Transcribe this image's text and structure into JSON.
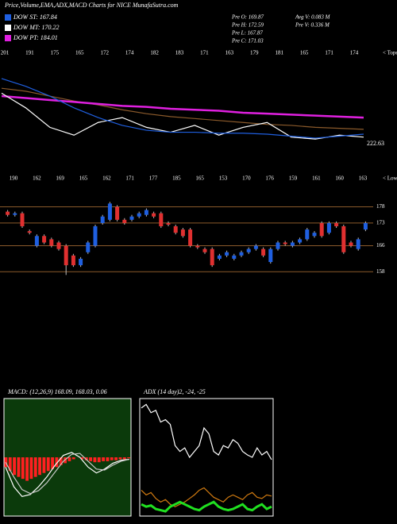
{
  "header": {
    "title": "Price,Volume,EMA,ADX,MACD Charts for NICE MunafaSutra.com",
    "legend": [
      {
        "label": "DOW ST: 167.84",
        "color": "#1f5fe0"
      },
      {
        "label": "DOW MT: 170.22",
        "color": "#ffffff"
      },
      {
        "label": "DOW PT: 184.01",
        "color": "#e020e0"
      }
    ],
    "info": [
      "Pre O: 169.87",
      "Pre H: 172.59",
      "Pre L: 167.87",
      "Pre C: 171.03",
      "Avg V: 0.083 M",
      "Pre V: 0.336 M"
    ]
  },
  "chart_data": [
    {
      "type": "line",
      "label": "222.63",
      "corner_label": "< Tope",
      "x_labels": [
        "201",
        "191",
        "175",
        "165",
        "172",
        "174",
        "182",
        "183",
        "171",
        "163",
        "179",
        "181",
        "165",
        "171",
        "174"
      ],
      "ylim": [
        0,
        100
      ],
      "series": [
        {
          "color": "#8b5a2b",
          "values": [
            60,
            57,
            52,
            47,
            43,
            38,
            34,
            31,
            29,
            27,
            25,
            23,
            22,
            20,
            19,
            18
          ]
        },
        {
          "color": "#e020e0",
          "values": [
            52,
            50,
            48,
            46,
            44,
            42,
            41,
            39,
            38,
            37,
            35,
            34,
            33,
            32,
            31,
            30
          ]
        },
        {
          "color": "#ffffff",
          "values": [
            55,
            40,
            20,
            12,
            25,
            30,
            20,
            15,
            22,
            12,
            20,
            25,
            10,
            8,
            12,
            10
          ]
        },
        {
          "color": "#1f5fe0",
          "values": [
            70,
            62,
            52,
            40,
            30,
            22,
            17,
            15,
            15,
            14,
            14,
            13,
            11,
            9,
            11,
            13
          ]
        }
      ]
    },
    {
      "type": "candlestick",
      "corner_label": "< Lowe",
      "x_labels": [
        "190",
        "162",
        "169",
        "165",
        "162",
        "171",
        "177",
        "185",
        "165",
        "153",
        "170",
        "176",
        "159",
        "161",
        "160",
        "163"
      ],
      "ylim": [
        150,
        183
      ],
      "yticks": [
        178,
        173,
        166,
        158
      ],
      "up_color": "#1f5fe0",
      "down_color": "#e03030",
      "open": [
        176.5,
        175.5,
        176,
        170.5,
        166,
        169,
        168,
        167,
        166,
        163,
        160,
        164,
        166,
        173,
        174,
        178,
        174,
        174,
        175,
        175.5,
        176,
        176,
        173,
        172,
        171,
        171,
        166,
        165,
        165,
        162,
        163,
        162,
        163,
        164,
        165,
        165,
        161,
        165,
        167,
        166,
        167,
        168,
        169,
        173,
        170,
        173,
        172,
        167,
        165,
        171
      ],
      "high": [
        177,
        176.5,
        176.5,
        171,
        169.5,
        169.5,
        168.5,
        167.5,
        166.5,
        163.5,
        162.5,
        167.5,
        172.5,
        175.5,
        179.5,
        178.5,
        174.5,
        175.5,
        176.5,
        177.5,
        176.5,
        176.5,
        173.5,
        172.5,
        171.5,
        171.5,
        166.5,
        165.5,
        165.5,
        163.5,
        164.5,
        163.5,
        164.5,
        165.5,
        166.5,
        165.5,
        165.5,
        167.5,
        167.5,
        167.5,
        168.5,
        171.5,
        170.5,
        173.5,
        173.5,
        173.5,
        172.5,
        167.5,
        168.5,
        173.5
      ],
      "low": [
        175,
        175,
        171.5,
        169.5,
        165.5,
        166.5,
        165.5,
        164.5,
        157,
        159.5,
        159.5,
        163.5,
        165.5,
        172.5,
        173.5,
        173.5,
        172.5,
        173.5,
        174.5,
        175,
        174.5,
        171.5,
        172,
        169.5,
        168.5,
        165.5,
        165,
        163.5,
        159.5,
        161.5,
        162.5,
        161.5,
        162.5,
        163.5,
        164.5,
        162.5,
        160.5,
        164.5,
        166,
        165.5,
        166.5,
        167.5,
        168.5,
        168.5,
        169.5,
        171.5,
        163.5,
        165.5,
        164.5,
        170.5
      ],
      "close": [
        175.5,
        176,
        172,
        170,
        169,
        167,
        166,
        165,
        160,
        160,
        162,
        167,
        172,
        175,
        179,
        174,
        173,
        175,
        176,
        177,
        175,
        172,
        172.5,
        170,
        169,
        166,
        165.5,
        164,
        160,
        163,
        164,
        163,
        164,
        165,
        166,
        163,
        165,
        167,
        166.5,
        167,
        168,
        171,
        170,
        169,
        173,
        172,
        164,
        166,
        168,
        173
      ]
    },
    {
      "type": "bar",
      "title": "MACD: (12,26,9) 168.09, 168.03, 0.06",
      "ylim": [
        -60,
        60
      ],
      "color": "#ff2020",
      "bg": "#0b3a0b",
      "values": [
        -10,
        -14,
        -18,
        -20,
        -22,
        -24,
        -22,
        -20,
        -18,
        -16,
        -14,
        -12,
        -10,
        -8,
        -6,
        -4,
        -2,
        0,
        -2,
        -3,
        -4,
        -5,
        -5,
        -4,
        -4,
        -3,
        -3,
        -2,
        -2,
        -1
      ],
      "series": [
        {
          "color": "#ffffff",
          "values": [
            -10,
            -30,
            -40,
            -38,
            -30,
            -20,
            -8,
            2,
            5,
            0,
            -10,
            -16,
            -12,
            -6,
            -3,
            -2
          ]
        },
        {
          "color": "#c8c8c8",
          "values": [
            -5,
            -20,
            -33,
            -37,
            -34,
            -26,
            -15,
            -4,
            3,
            4,
            -4,
            -12,
            -13,
            -8,
            -4,
            -2
          ]
        }
      ]
    },
    {
      "type": "line",
      "title": "ADX (14 day)2, -24, -25",
      "ylim": [
        0,
        100
      ],
      "series": [
        {
          "color": "#ffffff",
          "values": [
            92,
            95,
            88,
            90,
            80,
            82,
            78,
            60,
            55,
            58,
            50,
            55,
            60,
            75,
            70,
            55,
            52,
            60,
            58,
            65,
            62,
            55,
            52,
            50,
            58,
            52,
            55,
            48
          ]
        },
        {
          "color": "#d07a10",
          "values": [
            22,
            18,
            20,
            15,
            12,
            14,
            10,
            8,
            10,
            12,
            15,
            18,
            22,
            24,
            20,
            16,
            14,
            12,
            16,
            18,
            16,
            14,
            18,
            20,
            16,
            15,
            18,
            17
          ]
        },
        {
          "color": "#20e020",
          "values": [
            10,
            8,
            9,
            6,
            5,
            4,
            8,
            10,
            12,
            10,
            8,
            6,
            5,
            8,
            10,
            12,
            8,
            6,
            5,
            6,
            8,
            10,
            6,
            5,
            8,
            10,
            6,
            8
          ]
        }
      ]
    }
  ]
}
